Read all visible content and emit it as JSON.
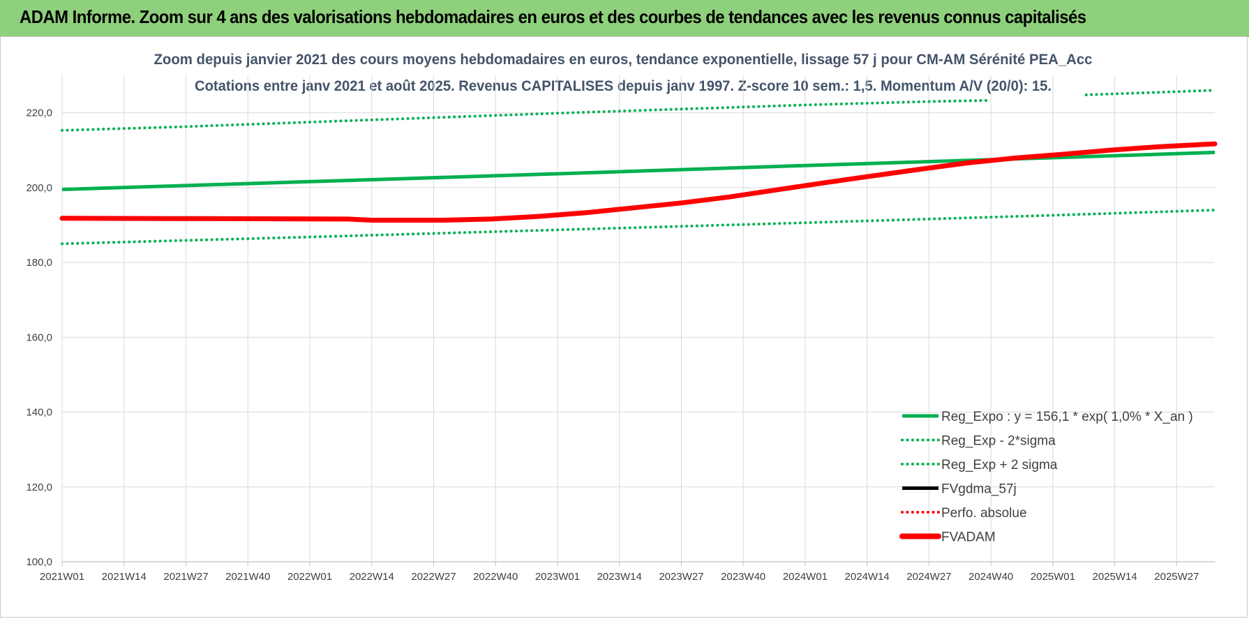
{
  "header": {
    "title": "ADAM Informe. Zoom sur 4 ans des valorisations hebdomadaires en euros et des courbes de tendances avec les revenus connus capitalisés"
  },
  "chart_data": {
    "type": "line",
    "title_line1": "Zoom depuis janvier 2021 des cours moyens hebdomadaires en euros, tendance exponentielle, lissage 57 j pour CM-AM Sérénité PEA_Acc",
    "title_line2": "Cotations entre janv 2021 et août 2025. Revenus CAPITALISES depuis janv 1997. Z-score 10 sem.: 1,5. Momentum A/V (20/0): 15.",
    "ylim": [
      100,
      230
    ],
    "yticks": [
      "100,0",
      "120,0",
      "140,0",
      "160,0",
      "180,0",
      "200,0",
      "220,0"
    ],
    "ytick_values": [
      100,
      120,
      140,
      160,
      180,
      200,
      220
    ],
    "xlim": [
      0,
      242
    ],
    "categories": [
      "2021W01",
      "2021W14",
      "2021W27",
      "2021W40",
      "2022W01",
      "2022W14",
      "2022W27",
      "2022W40",
      "2023W01",
      "2023W14",
      "2023W27",
      "2023W40",
      "2024W01",
      "2024W14",
      "2024W27",
      "2024W40",
      "2025W01",
      "2025W14",
      "2025W27"
    ],
    "category_index": [
      0,
      13,
      26,
      39,
      52,
      65,
      78,
      91,
      104,
      117,
      130,
      143,
      156,
      169,
      182,
      195,
      208,
      221,
      234
    ],
    "grid": true,
    "legend_position": "bottom-right",
    "series": [
      {
        "name": "Reg_Expo : y = 156,1 * exp( 1,0% *  X_an )",
        "style": "solid",
        "color": "#00b050",
        "x": [
          0,
          52,
          104,
          156,
          208,
          242
        ],
        "y": [
          199.5,
          201.6,
          203.7,
          205.9,
          208.0,
          209.4
        ]
      },
      {
        "name": "Reg_Exp - 2*sigma",
        "style": "dotted",
        "color": "#00b050",
        "x": [
          0,
          52,
          104,
          156,
          208,
          242
        ],
        "y": [
          185.0,
          186.8,
          188.7,
          190.6,
          192.6,
          194.0
        ]
      },
      {
        "name": "Reg_Exp + 2 sigma",
        "style": "dotted",
        "color": "#00b050",
        "x": [
          0,
          26,
          52,
          78,
          104,
          130,
          156,
          182,
          194,
          194,
          215,
          215,
          242
        ],
        "y": [
          215.3,
          216.3,
          217.5,
          218.7,
          219.9,
          221.0,
          222.1,
          223.0,
          223.3,
          null,
          224.8,
          224.8,
          226.0
        ]
      },
      {
        "name": "FVgdma_57j",
        "style": "solid",
        "color": "#000000",
        "x": [],
        "y": []
      },
      {
        "name": "Perfo. absolue",
        "style": "dotted",
        "color": "#ff0000",
        "x": [],
        "y": []
      },
      {
        "name": "FVADAM",
        "style": "solid-thick",
        "color": "#ff0000",
        "x": [
          0,
          30,
          60,
          65,
          80,
          90,
          100,
          110,
          120,
          130,
          140,
          150,
          160,
          170,
          180,
          190,
          200,
          210,
          220,
          230,
          242
        ],
        "y": [
          191.8,
          191.7,
          191.6,
          191.3,
          191.3,
          191.6,
          192.3,
          193.3,
          194.6,
          195.9,
          197.5,
          199.4,
          201.3,
          203.1,
          204.9,
          206.6,
          207.9,
          208.9,
          210.0,
          210.9,
          211.7
        ]
      }
    ]
  }
}
